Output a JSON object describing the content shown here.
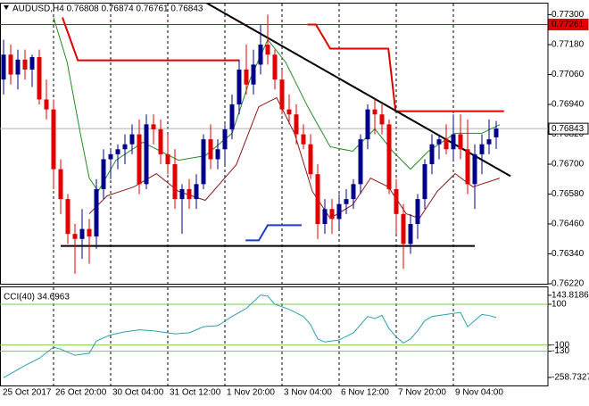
{
  "chart_data": [
    {
      "type": "candlestick",
      "title": "AUDUSD,H4  0.76808 0.76874 0.76761 0.76843",
      "categories": [
        "25 Oct 2017",
        null,
        null,
        null,
        null,
        null,
        null,
        "26 Oct 20:00",
        null,
        null,
        null,
        null,
        null,
        null,
        null,
        "30 Oct 04:00",
        null,
        null,
        null,
        null,
        null,
        null,
        null,
        "31 Oct 12:00",
        null,
        null,
        null,
        null,
        null,
        null,
        null,
        "1 Nov 20:00",
        null,
        null,
        null,
        null,
        null,
        null,
        null,
        "3 Nov 04:00",
        null,
        null,
        null,
        null,
        null,
        null,
        null,
        "6 Nov 12:00",
        null,
        null,
        null,
        null,
        null,
        null,
        null,
        "7 Nov 20:00",
        null,
        null,
        null,
        null,
        null,
        null,
        null,
        "9 Nov 04:00",
        null,
        null,
        null,
        null,
        null,
        null
      ],
      "ohlc": [
        [
          0.7704,
          0.772,
          0.7698,
          0.7714
        ],
        [
          0.7714,
          0.7718,
          0.7702,
          0.7706
        ],
        [
          0.7706,
          0.7716,
          0.77,
          0.7712
        ],
        [
          0.7712,
          0.7716,
          0.7704,
          0.7708
        ],
        [
          0.7708,
          0.7714,
          0.7701,
          0.7713
        ],
        [
          0.7713,
          0.7716,
          0.7694,
          0.7696
        ],
        [
          0.7696,
          0.7704,
          0.7688,
          0.7692
        ],
        [
          0.7692,
          0.7696,
          0.766,
          0.7668
        ],
        [
          0.7668,
          0.7672,
          0.765,
          0.7656
        ],
        [
          0.7656,
          0.7658,
          0.7638,
          0.7642
        ],
        [
          0.7642,
          0.7646,
          0.7626,
          0.764
        ],
        [
          0.764,
          0.7652,
          0.7632,
          0.7644
        ],
        [
          0.7644,
          0.7648,
          0.763,
          0.7641
        ],
        [
          0.7641,
          0.7664,
          0.7636,
          0.766
        ],
        [
          0.766,
          0.7676,
          0.7656,
          0.7672
        ],
        [
          0.7672,
          0.7676,
          0.7664,
          0.7674
        ],
        [
          0.7674,
          0.7678,
          0.7668,
          0.7676
        ],
        [
          0.7676,
          0.7682,
          0.767,
          0.7678
        ],
        [
          0.7678,
          0.7686,
          0.7674,
          0.7682
        ],
        [
          0.7682,
          0.7688,
          0.7658,
          0.7662
        ],
        [
          0.7662,
          0.769,
          0.766,
          0.7686
        ],
        [
          0.7686,
          0.769,
          0.7678,
          0.7684
        ],
        [
          0.7684,
          0.7688,
          0.767,
          0.7674
        ],
        [
          0.7674,
          0.7682,
          0.7666,
          0.767
        ],
        [
          0.767,
          0.7676,
          0.7652,
          0.7656
        ],
        [
          0.7656,
          0.7662,
          0.7642,
          0.766
        ],
        [
          0.766,
          0.7664,
          0.7652,
          0.7656
        ],
        [
          0.7656,
          0.7666,
          0.7652,
          0.7662
        ],
        [
          0.7662,
          0.7682,
          0.766,
          0.768
        ],
        [
          0.768,
          0.7686,
          0.7668,
          0.7672
        ],
        [
          0.7672,
          0.768,
          0.7668,
          0.7676
        ],
        [
          0.7676,
          0.7686,
          0.767,
          0.7684
        ],
        [
          0.7684,
          0.7698,
          0.768,
          0.7694
        ],
        [
          0.7694,
          0.7712,
          0.769,
          0.7708
        ],
        [
          0.7708,
          0.7718,
          0.7698,
          0.7702
        ],
        [
          0.7702,
          0.7716,
          0.7698,
          0.771
        ],
        [
          0.771,
          0.7726,
          0.7706,
          0.7718
        ],
        [
          0.7718,
          0.773,
          0.771,
          0.7714
        ],
        [
          0.7714,
          0.7716,
          0.77,
          0.7704
        ],
        [
          0.7704,
          0.7708,
          0.769,
          0.7692
        ],
        [
          0.7692,
          0.7698,
          0.7686,
          0.769
        ],
        [
          0.769,
          0.7694,
          0.7678,
          0.7682
        ],
        [
          0.7682,
          0.7686,
          0.7676,
          0.7678
        ],
        [
          0.7678,
          0.7682,
          0.7664,
          0.7666
        ],
        [
          0.7666,
          0.767,
          0.764,
          0.7646
        ],
        [
          0.7646,
          0.7656,
          0.7642,
          0.7652
        ],
        [
          0.7652,
          0.7656,
          0.7642,
          0.7648
        ],
        [
          0.7648,
          0.7658,
          0.7644,
          0.7654
        ],
        [
          0.7654,
          0.766,
          0.765,
          0.7656
        ],
        [
          0.7656,
          0.7664,
          0.7652,
          0.7662
        ],
        [
          0.7662,
          0.7682,
          0.7658,
          0.768
        ],
        [
          0.768,
          0.7694,
          0.7676,
          0.7692
        ],
        [
          0.7692,
          0.7696,
          0.7682,
          0.769
        ],
        [
          0.769,
          0.7694,
          0.7682,
          0.7686
        ],
        [
          0.7686,
          0.7688,
          0.7658,
          0.766
        ],
        [
          0.766,
          0.7664,
          0.7642,
          0.765
        ],
        [
          0.765,
          0.7654,
          0.7628,
          0.7638
        ],
        [
          0.7638,
          0.765,
          0.7634,
          0.7646
        ],
        [
          0.7646,
          0.7658,
          0.764,
          0.7656
        ],
        [
          0.7656,
          0.7672,
          0.7652,
          0.767
        ],
        [
          0.767,
          0.7682,
          0.7666,
          0.7678
        ],
        [
          0.7678,
          0.7682,
          0.7672,
          0.768
        ],
        [
          0.768,
          0.7686,
          0.7674,
          0.7676
        ],
        [
          0.7676,
          0.769,
          0.7672,
          0.7682
        ],
        [
          0.7682,
          0.769,
          0.7672,
          0.7676
        ],
        [
          0.7676,
          0.7688,
          0.7658,
          0.7662
        ],
        [
          0.7662,
          0.7678,
          0.7652,
          0.7674
        ],
        [
          0.7674,
          0.7682,
          0.7666,
          0.7678
        ],
        [
          0.7678,
          0.7688,
          0.7674,
          0.768
        ],
        [
          0.76808,
          0.76874,
          0.76761,
          0.76843
        ]
      ],
      "up_color": "#00008b",
      "down_color": "#e00000",
      "ylim": [
        0.7622,
        0.77345
      ],
      "yticks": [
        {
          "value": 0.773,
          "label": "0.77300"
        },
        {
          "value": 0.7718,
          "label": "0.77180"
        },
        {
          "value": 0.7706,
          "label": "0.77060"
        },
        {
          "value": 0.7694,
          "label": "0.76940"
        },
        {
          "value": 0.7682,
          "label": "0.76820"
        },
        {
          "value": 0.767,
          "label": "0.76700"
        },
        {
          "value": 0.7658,
          "label": "0.76580"
        },
        {
          "value": 0.7646,
          "label": "0.76460"
        },
        {
          "value": 0.7634,
          "label": "0.76340"
        },
        {
          "value": 0.7622,
          "label": "0.76220"
        }
      ],
      "levels": [
        {
          "value": 0.77261,
          "label": "0.77261",
          "color": "#e00000"
        },
        {
          "value": 0.76843,
          "label": "0.76843",
          "color": "#b0b0b0"
        }
      ],
      "overlays": [
        {
          "color": "#228b22",
          "width": 1,
          "x": [
            7,
            8.9,
            10.75,
            12,
            13.25,
            15.75,
            19.5,
            24.5,
            28.25,
            32,
            34.5,
            37,
            39.5,
            42.6,
            45.75,
            48.9,
            52,
            54.5,
            57,
            59.5,
            63.25,
            67,
            69.5
          ],
          "values": [
            0.77289,
            0.7711,
            0.76824,
            0.76644,
            0.76591,
            0.76716,
            0.76788,
            0.76716,
            0.76734,
            0.76824,
            0.77039,
            0.772,
            0.7711,
            0.76931,
            0.7677,
            0.76752,
            0.76842,
            0.76752,
            0.7668,
            0.76752,
            0.76824,
            0.76824,
            0.76859
          ]
        },
        {
          "color": "#8b1a1a",
          "width": 1,
          "x": [
            12,
            14.5,
            18.25,
            21.4,
            24.5,
            28.25,
            32.6,
            35.75,
            38.25,
            40.75,
            43.25,
            45.75,
            48.9,
            51.4,
            53.9,
            56.4,
            58.25,
            60.75,
            63.25,
            65.75,
            69.5
          ],
          "values": [
            0.76501,
            0.76573,
            0.76609,
            0.76662,
            0.76591,
            0.76555,
            0.76698,
            0.76931,
            0.76967,
            0.76824,
            0.76591,
            0.76483,
            0.76537,
            0.76644,
            0.76609,
            0.76501,
            0.76483,
            0.76591,
            0.76662,
            0.76609,
            0.76644
          ]
        },
        {
          "color": "#e00000",
          "width": 2,
          "x": [
            8.25,
            10.4,
            33,
            null,
            42.6,
            43.75,
            45.75,
            53.9,
            54.9,
            70.1
          ],
          "values": [
            0.77289,
            0.77117,
            0.77117,
            null,
            0.77261,
            0.77261,
            0.77164,
            0.77164,
            0.76913,
            0.76913
          ]
        },
        {
          "color": "#1e3cc8",
          "width": 2,
          "x": [
            33.9,
            35.75,
            37,
            41.75
          ],
          "values": [
            0.76394,
            0.76394,
            0.76455,
            0.76455
          ]
        },
        {
          "color": "#000000",
          "width": 2,
          "x": [
            27.6,
            71
          ],
          "values": [
            0.77361,
            0.76652
          ]
        },
        {
          "color": "#000000",
          "width": 2,
          "x": [
            8,
            66
          ],
          "values": [
            0.76372,
            0.76372
          ]
        }
      ]
    },
    {
      "type": "line",
      "title": "CCI(40) 34.6963",
      "color": "#2a9fb0",
      "x": [
        0,
        3,
        5,
        7,
        8,
        10,
        12,
        13,
        15,
        17,
        19,
        21,
        24,
        26,
        28,
        30,
        32,
        34,
        36,
        37,
        38,
        40,
        42,
        43,
        44,
        45,
        47,
        49,
        50,
        51,
        52,
        53,
        54,
        55,
        56,
        57,
        58,
        59,
        60,
        62,
        64,
        65,
        66,
        67,
        68,
        69
      ],
      "values": [
        -260,
        -200,
        -165,
        -110,
        -120,
        -150,
        -140,
        -80,
        -50,
        -35,
        -25,
        -30,
        -45,
        -40,
        -10,
        -5,
        40,
        80,
        145,
        140,
        100,
        75,
        40,
        0,
        -70,
        -85,
        -75,
        -40,
        0,
        40,
        30,
        45,
        -20,
        -60,
        -90,
        -70,
        -30,
        20,
        40,
        50,
        60,
        -10,
        20,
        50,
        45,
        34.6963
      ],
      "ylim": [
        -298,
        183
      ],
      "yticks": [
        143.8186,
        100,
        -100,
        -130,
        -258.7327
      ],
      "levels": [
        100,
        -100,
        -130
      ],
      "level_color": "#7ccd3c"
    }
  ]
}
